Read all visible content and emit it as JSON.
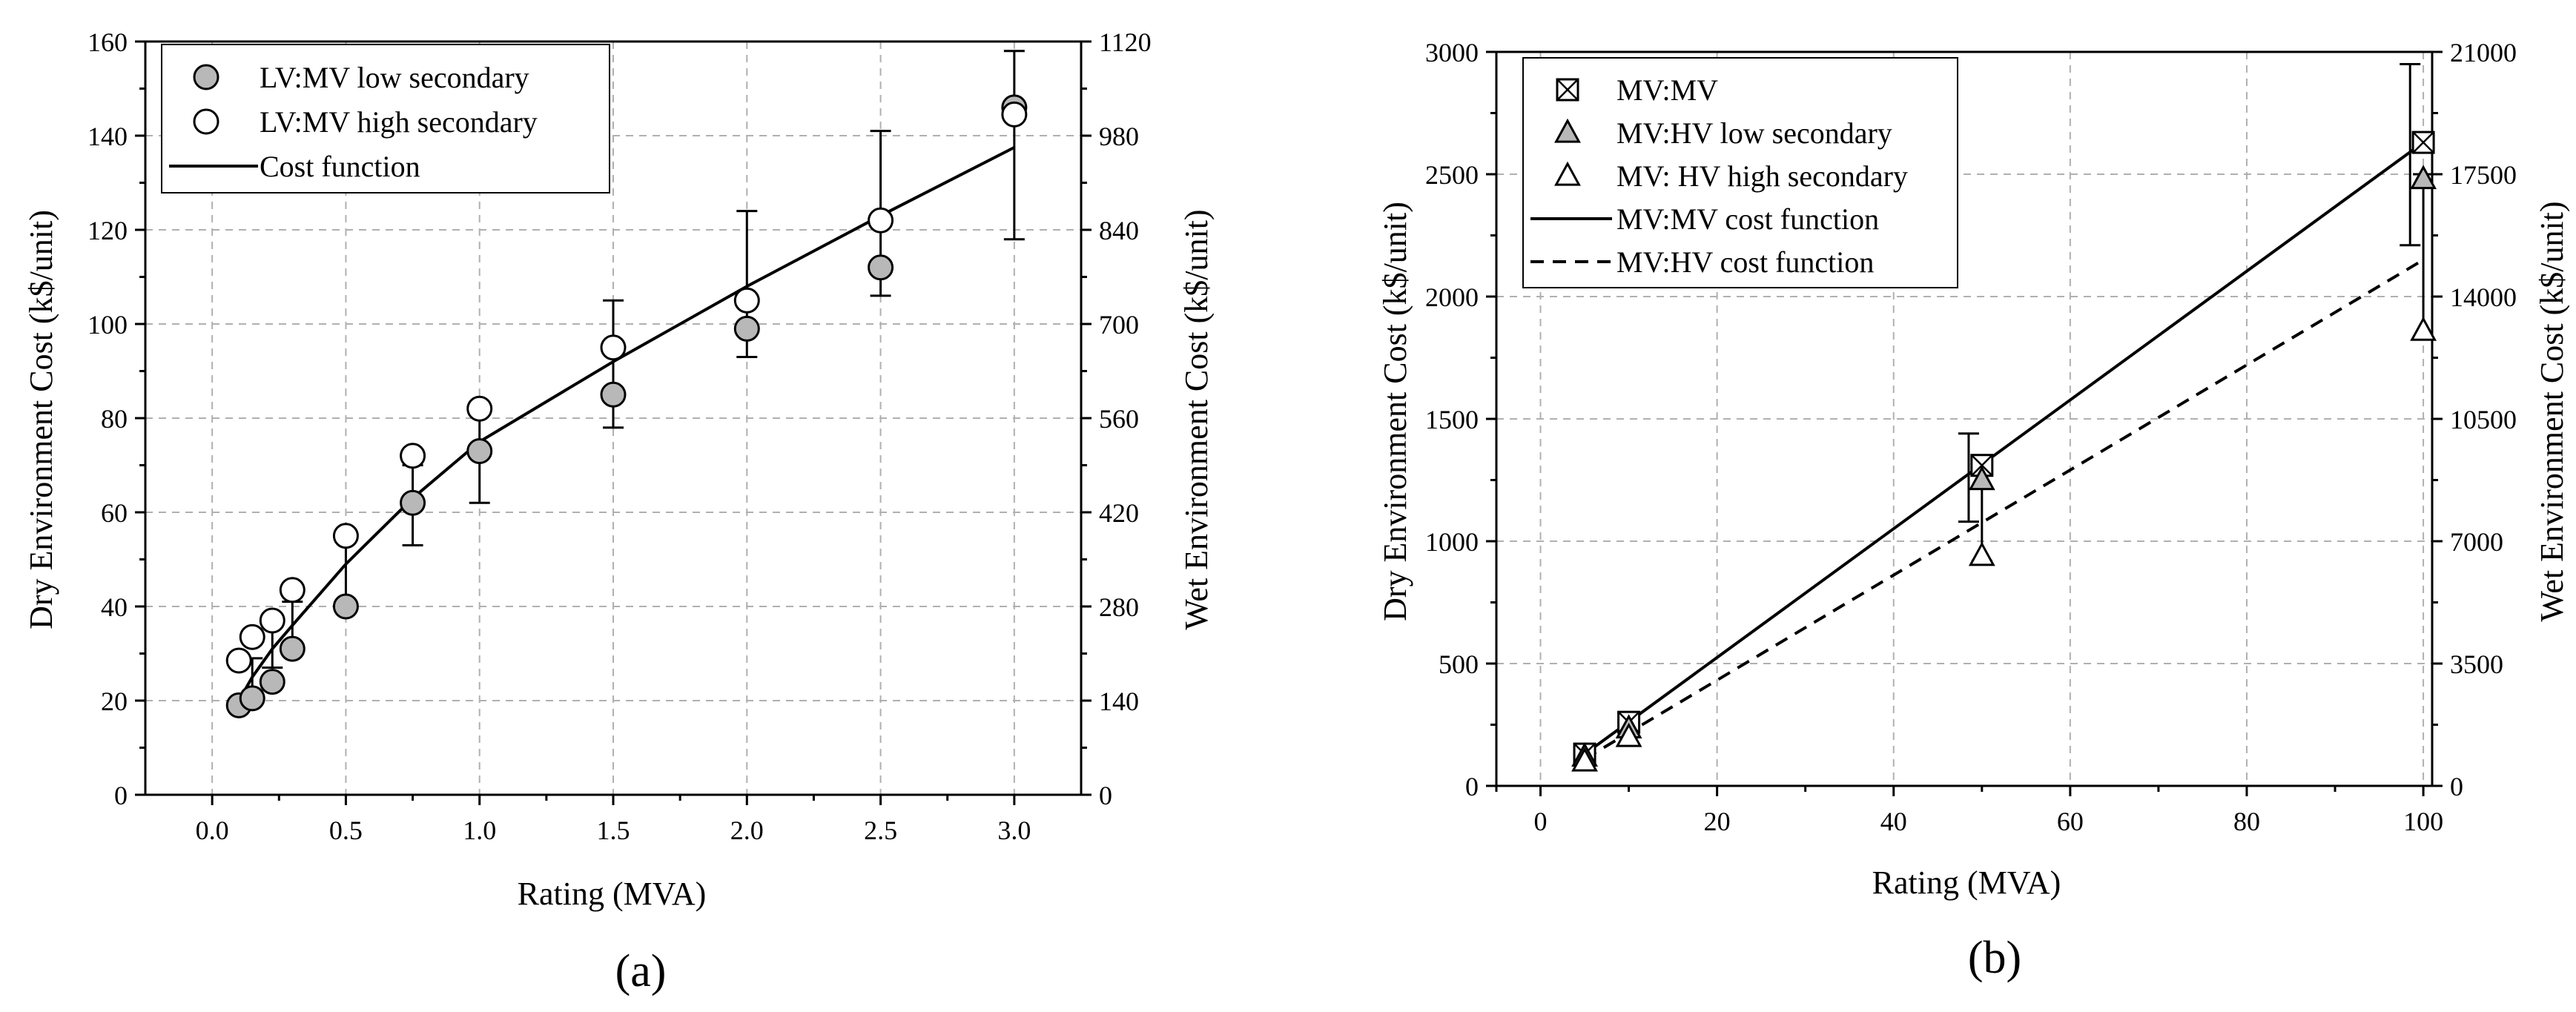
{
  "chart_data": [
    {
      "type": "scatter",
      "panel_label": "(a)",
      "xlabel": "Rating (MVA)",
      "ylabel": "Dry Environment Cost (k$/unit)",
      "y2label": "Wet Environment Cost (k$/unit)",
      "xlim": [
        -0.25,
        3.25
      ],
      "ylim": [
        0,
        160
      ],
      "y2lim": [
        0,
        1120
      ],
      "xticks": [
        "0.0",
        "0.5",
        "1.0",
        "1.5",
        "2.0",
        "2.5",
        "3.0"
      ],
      "xtick_values": [
        0,
        0.5,
        1.0,
        1.5,
        2.0,
        2.5,
        3.0
      ],
      "yticks": [
        "0",
        "20",
        "40",
        "60",
        "80",
        "100",
        "120",
        "140",
        "160"
      ],
      "ytick_values": [
        0,
        20,
        40,
        60,
        80,
        100,
        120,
        140,
        160
      ],
      "y2ticks": [
        "0",
        "140",
        "280",
        "420",
        "560",
        "700",
        "840",
        "980",
        "1120"
      ],
      "y2tick_values": [
        0,
        140,
        280,
        420,
        560,
        700,
        840,
        980,
        1120
      ],
      "legend_position": "top-left",
      "series": [
        {
          "name": "LV:MV low secondary",
          "marker": "circle-filled",
          "x": [
            0.1,
            0.15,
            0.225,
            0.3,
            0.5,
            0.75,
            1.0,
            1.5,
            2.0,
            2.5,
            3.0
          ],
          "y": [
            19,
            20.5,
            24,
            31,
            40,
            62,
            73,
            85,
            99,
            112,
            146
          ]
        },
        {
          "name": "LV:MV high secondary",
          "marker": "circle-open",
          "x": [
            0.1,
            0.15,
            0.225,
            0.3,
            0.5,
            0.75,
            1.0,
            1.5,
            2.0,
            2.5,
            3.0
          ],
          "y": [
            28.5,
            33.5,
            37,
            43.5,
            55,
            72,
            82,
            95,
            105,
            122,
            144.5
          ]
        },
        {
          "name": "Cost function",
          "style": "solid",
          "x": [
            0.1,
            0.15,
            0.225,
            0.3,
            0.5,
            0.75,
            1.0,
            1.5,
            2.0,
            2.5,
            3.0
          ],
          "y": [
            20,
            25,
            31,
            36,
            49,
            63,
            75,
            92,
            108,
            123,
            137.5
          ]
        }
      ],
      "error_bars": {
        "x": [
          0.15,
          0.225,
          0.3,
          0.5,
          0.75,
          1.0,
          1.5,
          2.0,
          2.5,
          3.0
        ],
        "low": [
          22,
          27,
          32,
          40,
          53,
          62,
          78,
          93,
          106,
          118
        ],
        "high": [
          29,
          36,
          41,
          55,
          70,
          81,
          105,
          124,
          141,
          158
        ]
      }
    },
    {
      "type": "scatter",
      "panel_label": "(b)",
      "xlabel": "Rating (MVA)",
      "ylabel": "Dry Environment Cost (k$/unit)",
      "y2label": "Wet Environment Cost (k$/unit)",
      "xlim": [
        -5,
        101
      ],
      "ylim": [
        0,
        3000
      ],
      "y2lim": [
        0,
        21000
      ],
      "xticks": [
        "0",
        "20",
        "40",
        "60",
        "80",
        "100"
      ],
      "xtick_values": [
        0,
        20,
        40,
        60,
        80,
        100
      ],
      "yticks": [
        "0",
        "500",
        "1000",
        "1500",
        "2000",
        "2500",
        "3000"
      ],
      "ytick_values": [
        0,
        500,
        1000,
        1500,
        2000,
        2500,
        3000
      ],
      "y2ticks": [
        "0",
        "3500",
        "7000",
        "10500",
        "14000",
        "17500",
        "21000"
      ],
      "y2tick_values": [
        0,
        3500,
        7000,
        10500,
        14000,
        17500,
        21000
      ],
      "legend_position": "top-left",
      "series": [
        {
          "name": "MV:MV",
          "marker": "square-x",
          "x": [
            5,
            10,
            50,
            100
          ],
          "y": [
            130,
            260,
            1310,
            2630
          ]
        },
        {
          "name": "MV:HV low secondary",
          "marker": "triangle-filled",
          "x": [
            5,
            10,
            50,
            100
          ],
          "y": [
            120,
            235,
            1250,
            2480
          ]
        },
        {
          "name": "MV: HV high secondary",
          "marker": "triangle-open",
          "x": [
            5,
            10,
            50,
            100
          ],
          "y": [
            100,
            200,
            940,
            1860
          ]
        },
        {
          "name": "MV:MV cost function",
          "style": "solid",
          "x": [
            5,
            100
          ],
          "y": [
            130,
            2630
          ]
        },
        {
          "name": "MV:HV cost function",
          "style": "dashed",
          "x": [
            5,
            100
          ],
          "y": [
            110,
            2150
          ]
        }
      ],
      "error_bars": {
        "x": [
          5,
          10,
          48.5,
          50,
          98.5,
          100
        ],
        "low": [
          110,
          220,
          1080,
          920,
          2210,
          1830
        ],
        "high": [
          150,
          290,
          1440,
          1280,
          2950,
          2500
        ]
      }
    }
  ]
}
